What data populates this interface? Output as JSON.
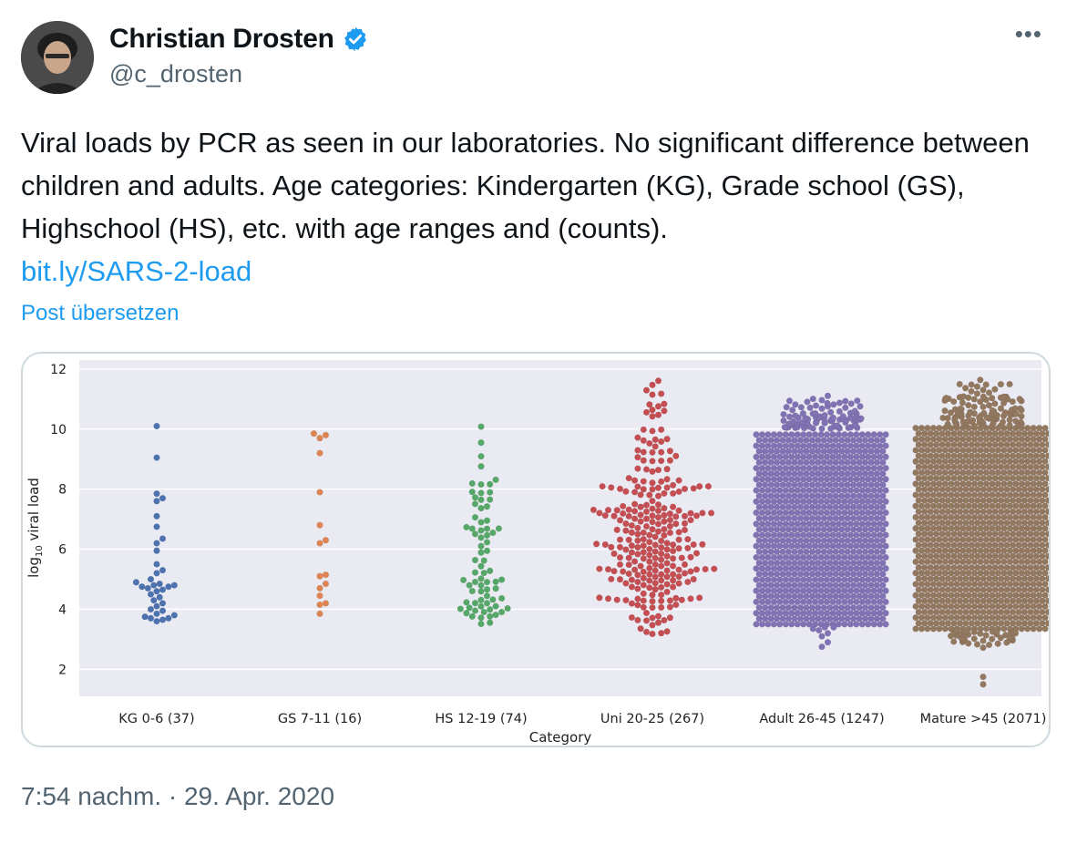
{
  "author": {
    "name": "Christian Drosten",
    "handle": "@c_drosten",
    "verified": true
  },
  "more_icon": "more-icon",
  "tweet": {
    "text": "Viral loads by PCR as seen in our laboratories. No significant difference between children and adults. Age categories: Kindergarten (KG), Grade school (GS), Highschool (HS), etc. with age ranges and (counts).",
    "link": "bit.ly/SARS-2-load",
    "translate_label": "Post übersetzen",
    "timestamp": "7:54 nachm. · 29. Apr. 2020"
  },
  "colors": {
    "accent": "#1d9bf0",
    "plot_bg": "#eaeaf2",
    "kg": "#4c72b0",
    "gs": "#dd8452",
    "hs": "#55a868",
    "uni": "#c44e52",
    "adult": "#8172b3",
    "mature": "#937860"
  },
  "chart_data": {
    "type": "scatter",
    "subtype": "swarm",
    "xlabel": "Category",
    "ylabel": "log10 viral load",
    "ylabel_main": "log",
    "ylabel_sub": "10",
    "ylabel_rest": " viral load",
    "ylim": [
      1.1,
      12.3
    ],
    "yticks": [
      2,
      4,
      6,
      8,
      10,
      12
    ],
    "grid": true,
    "categories": [
      "KG 0-6 (37)",
      "GS 7-11 (16)",
      "HS 12-19 (74)",
      "Uni 20-25 (267)",
      "Adult 26-45 (1247)",
      "Mature >45 (2071)"
    ],
    "series": [
      {
        "name": "KG 0-6 (37)",
        "count": 37,
        "values": [
          10.1,
          9.05,
          7.85,
          7.7,
          7.6,
          7.1,
          6.75,
          6.35,
          6.2,
          5.95,
          5.5,
          5.3,
          5.2,
          5.0,
          4.9,
          4.85,
          4.8,
          4.8,
          4.75,
          4.75,
          4.7,
          4.65,
          4.6,
          4.5,
          4.4,
          4.3,
          4.2,
          4.1,
          4.0,
          3.95,
          3.85,
          3.8,
          3.75,
          3.7,
          3.7,
          3.65,
          3.6
        ]
      },
      {
        "name": "GS 7-11 (16)",
        "count": 16,
        "values": [
          9.85,
          9.8,
          9.7,
          9.2,
          7.9,
          6.8,
          6.3,
          6.2,
          5.15,
          5.1,
          4.85,
          4.7,
          4.45,
          4.2,
          4.15,
          3.85
        ]
      },
      {
        "name": "HS 12-19 (74)",
        "count": 74
      },
      {
        "name": "Uni 20-25 (267)",
        "count": 267
      },
      {
        "name": "Adult 26-45 (1247)",
        "count": 1247
      },
      {
        "name": "Mature >45 (2071)",
        "count": 2071
      }
    ],
    "distribution_summary": [
      {
        "name": "HS 12-19 (74)",
        "min": 3.5,
        "max": 10.2,
        "dense_range": [
          3.6,
          4.1
        ]
      },
      {
        "name": "Uni 20-25 (267)",
        "min": 3.1,
        "max": 11.8,
        "dense_range": [
          4.0,
          7.5
        ]
      },
      {
        "name": "Adult 26-45 (1247)",
        "min": 2.7,
        "max": 11.2,
        "dense_range": [
          3.5,
          10.0
        ]
      },
      {
        "name": "Mature >45 (2071)",
        "min": 1.5,
        "max": 11.9,
        "dense_range": [
          3.3,
          10.1
        ]
      }
    ]
  }
}
